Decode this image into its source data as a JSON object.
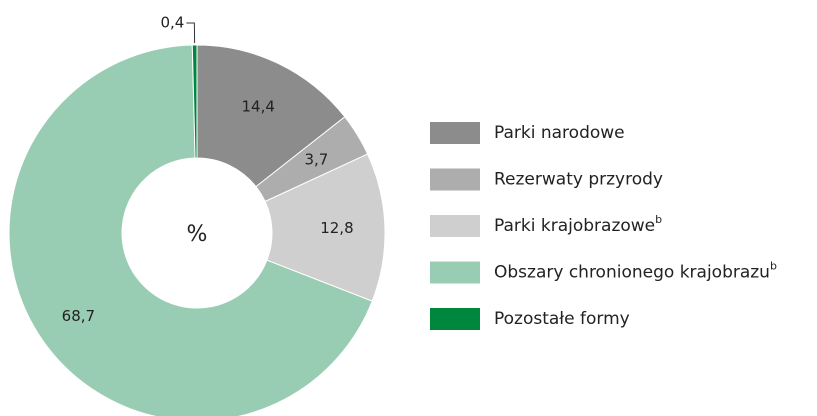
{
  "chart_data": {
    "type": "donut",
    "center_label": "%",
    "categories": [
      "Parki narodowe",
      "Rezerwaty przyrody",
      "Parki krajobrazowe",
      "Obszary chronionego krajobrazu",
      "Pozostałe formy"
    ],
    "category_notes": [
      null,
      null,
      "b",
      "b",
      null
    ],
    "values": [
      14.4,
      3.7,
      12.8,
      68.7,
      0.4
    ],
    "value_labels": [
      "14,4",
      "3,7",
      "12,8",
      "68,7",
      "0,4"
    ],
    "colors": [
      "#8c8c8c",
      "#adadad",
      "#cfcfcf",
      "#99cdb3",
      "#00873e"
    ],
    "legend": "right"
  }
}
